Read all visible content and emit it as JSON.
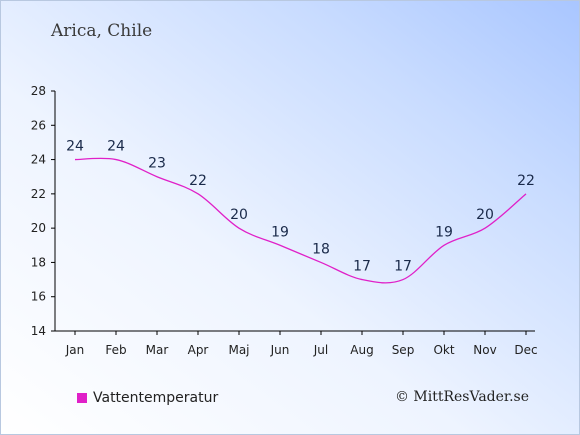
{
  "location": "Arica, Chile",
  "credit": "© MittResVader.se",
  "colors": {
    "line": "#e020c8",
    "text": "#1a2a4a",
    "axis": "#000000"
  },
  "chart_data": {
    "type": "line",
    "categories": [
      "Jan",
      "Feb",
      "Mar",
      "Apr",
      "Maj",
      "Jun",
      "Jul",
      "Aug",
      "Sep",
      "Okt",
      "Nov",
      "Dec"
    ],
    "series": [
      {
        "name": "Vattentemperatur",
        "values": [
          24,
          24,
          23,
          22,
          20,
          19,
          18,
          17,
          17,
          19,
          20,
          22
        ]
      }
    ],
    "data_labels": [
      "24",
      "24",
      "23",
      "22",
      "20",
      "19",
      "18",
      "17",
      "17",
      "19",
      "20",
      "22"
    ],
    "yticks": [
      "14",
      "16",
      "18",
      "20",
      "22",
      "24",
      "26",
      "28"
    ],
    "ylim": [
      14,
      28
    ],
    "grid": false,
    "legend": "bottom-left"
  }
}
